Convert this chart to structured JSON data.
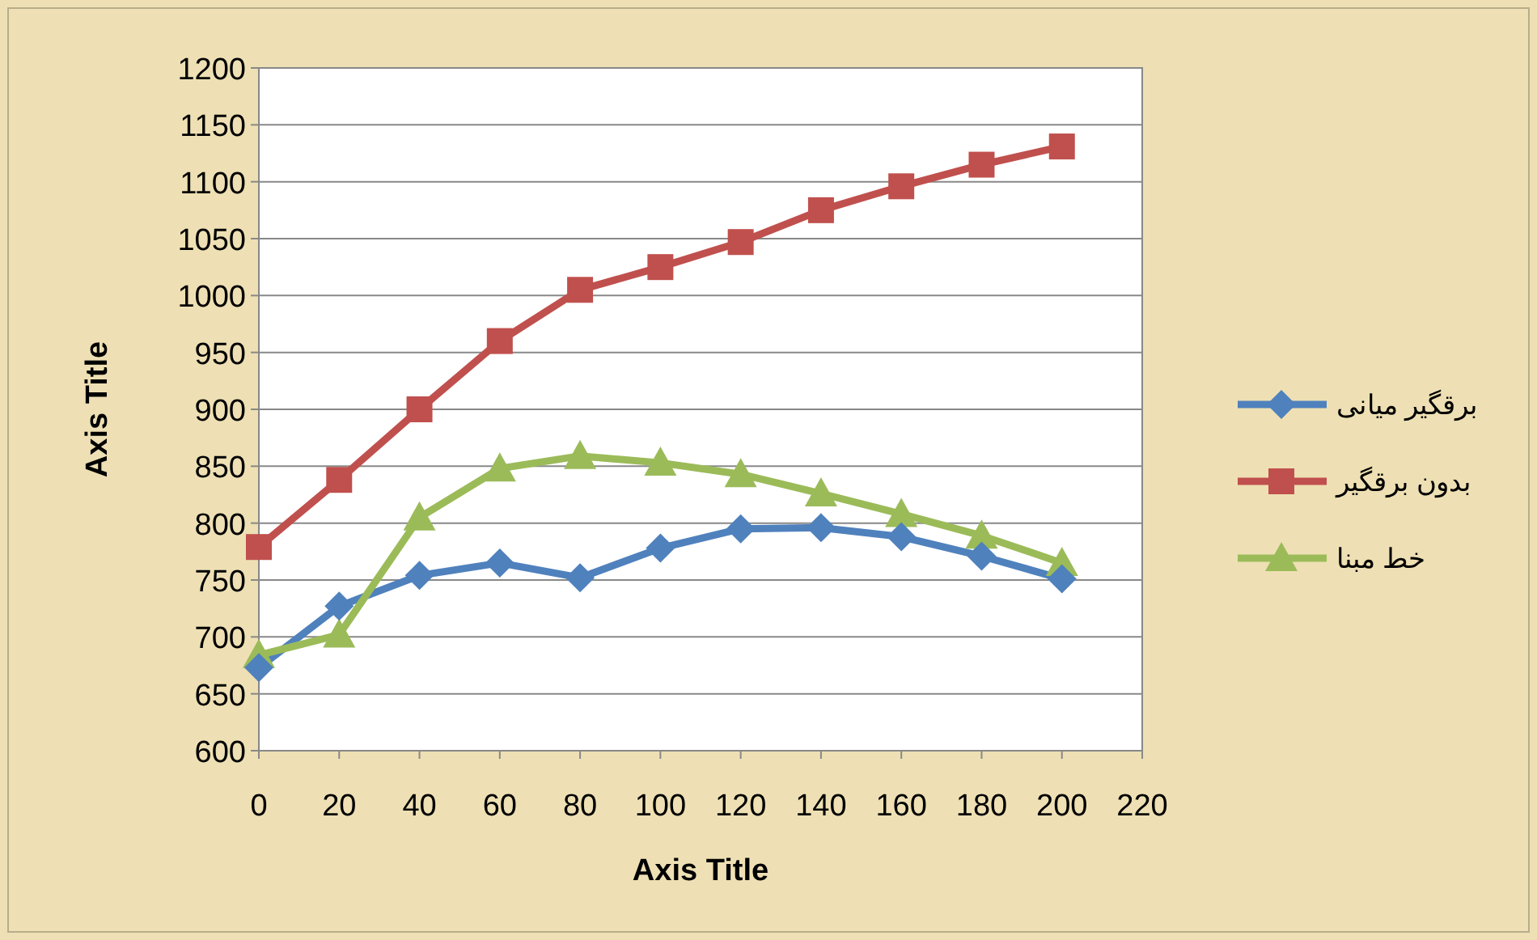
{
  "chart_data": {
    "type": "line",
    "xlabel": "Axis Title",
    "ylabel": "Axis Title",
    "x": [
      0,
      20,
      40,
      60,
      80,
      100,
      120,
      140,
      160,
      180,
      200
    ],
    "xlim": [
      0,
      220
    ],
    "xticks": [
      0,
      20,
      40,
      60,
      80,
      100,
      120,
      140,
      160,
      180,
      200,
      220
    ],
    "ylim": [
      600,
      1200
    ],
    "yticks": [
      600,
      650,
      700,
      750,
      800,
      850,
      900,
      950,
      1000,
      1050,
      1100,
      1150,
      1200
    ],
    "grid": "y",
    "legend": "right",
    "line_style": "solid",
    "series": [
      {
        "name": "برقگیر میانی",
        "color": "#4f81bd",
        "marker": "diamond",
        "values": [
          673,
          727,
          754,
          765,
          752,
          778,
          795,
          796,
          788,
          771,
          751
        ]
      },
      {
        "name": "بدون برقگیر",
        "color": "#c0504d",
        "marker": "square",
        "values": [
          779,
          838,
          900,
          960,
          1005,
          1025,
          1047,
          1075,
          1096,
          1115,
          1131
        ]
      },
      {
        "name": "خط مبنا",
        "color": "#9bbb59",
        "marker": "triangle",
        "values": [
          684,
          702,
          805,
          848,
          859,
          853,
          843,
          826,
          808,
          789,
          765
        ]
      }
    ]
  }
}
